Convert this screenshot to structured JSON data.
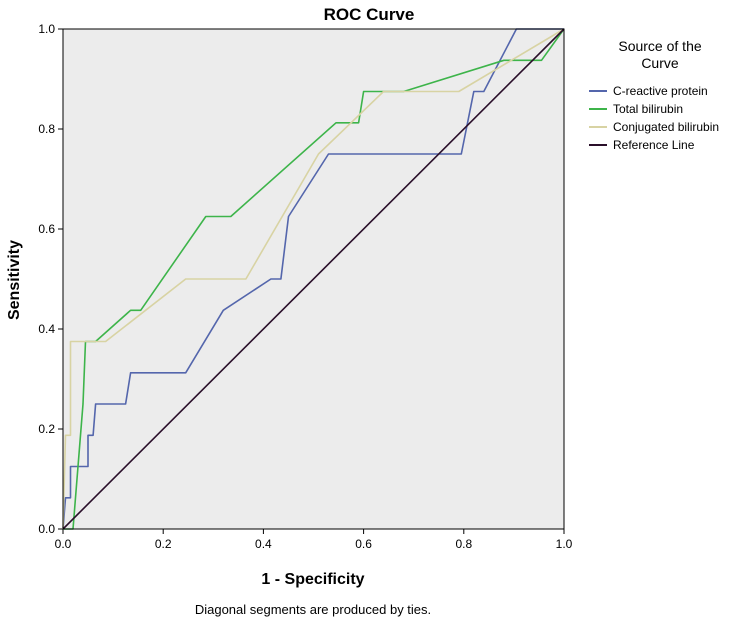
{
  "chart_data": {
    "type": "line",
    "title": "ROC Curve",
    "xlabel": "1 - Specificity",
    "ylabel": "Sensitivity",
    "xlim": [
      0,
      1
    ],
    "ylim": [
      0,
      1
    ],
    "xticks": [
      "0.0",
      "0.2",
      "0.4",
      "0.6",
      "0.8",
      "1.0"
    ],
    "yticks": [
      "0.0",
      "0.2",
      "0.4",
      "0.6",
      "0.8",
      "1.0"
    ],
    "grid": false,
    "background": "#ececec",
    "legend": {
      "title_lines": [
        "Source of the",
        "Curve"
      ],
      "placement": "right"
    },
    "footnote": "Diagonal segments are produced by ties.",
    "series": [
      {
        "name": "C-reactive protein",
        "color": "#5466ac",
        "points": [
          [
            0,
            0
          ],
          [
            0.005,
            0.0625
          ],
          [
            0.015,
            0.0625
          ],
          [
            0.015,
            0.125
          ],
          [
            0.05,
            0.125
          ],
          [
            0.05,
            0.1875
          ],
          [
            0.06,
            0.1875
          ],
          [
            0.065,
            0.25
          ],
          [
            0.125,
            0.25
          ],
          [
            0.135,
            0.3125
          ],
          [
            0.245,
            0.3125
          ],
          [
            0.32,
            0.4375
          ],
          [
            0.415,
            0.5
          ],
          [
            0.435,
            0.5
          ],
          [
            0.45,
            0.625
          ],
          [
            0.53,
            0.75
          ],
          [
            0.795,
            0.75
          ],
          [
            0.82,
            0.875
          ],
          [
            0.84,
            0.875
          ],
          [
            0.905,
            1.0
          ],
          [
            1.0,
            1.0
          ]
        ]
      },
      {
        "name": "Total bilirubin",
        "color": "#3db44a",
        "points": [
          [
            0,
            0
          ],
          [
            0.02,
            0.0
          ],
          [
            0.04,
            0.25
          ],
          [
            0.045,
            0.375
          ],
          [
            0.065,
            0.375
          ],
          [
            0.135,
            0.4375
          ],
          [
            0.155,
            0.4375
          ],
          [
            0.285,
            0.625
          ],
          [
            0.335,
            0.625
          ],
          [
            0.545,
            0.8125
          ],
          [
            0.59,
            0.8125
          ],
          [
            0.6,
            0.875
          ],
          [
            0.68,
            0.875
          ],
          [
            0.88,
            0.9375
          ],
          [
            0.955,
            0.9375
          ],
          [
            1.0,
            1.0
          ]
        ]
      },
      {
        "name": "Conjugated bilirubin",
        "color": "#d8d3a3",
        "points": [
          [
            0,
            0
          ],
          [
            0.005,
            0.1875
          ],
          [
            0.015,
            0.1875
          ],
          [
            0.015,
            0.375
          ],
          [
            0.085,
            0.375
          ],
          [
            0.245,
            0.5
          ],
          [
            0.365,
            0.5
          ],
          [
            0.51,
            0.75
          ],
          [
            0.64,
            0.875
          ],
          [
            0.79,
            0.875
          ],
          [
            1.0,
            1.0
          ]
        ]
      },
      {
        "name": "Reference Line",
        "color": "#2a0f2a",
        "points": [
          [
            0,
            0
          ],
          [
            1,
            1
          ]
        ]
      }
    ]
  }
}
